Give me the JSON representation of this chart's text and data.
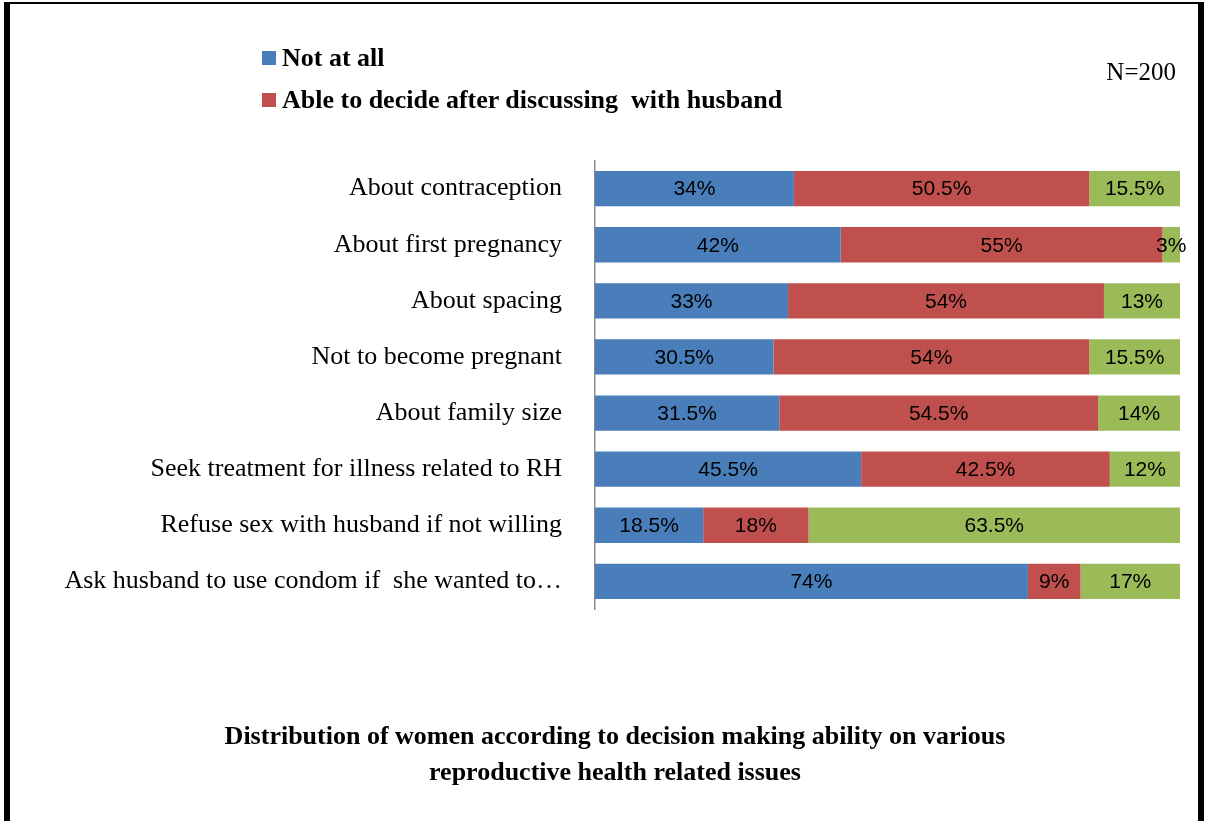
{
  "chart_data": {
    "type": "bar",
    "orientation": "horizontal",
    "stacked": true,
    "title": "Distribution of women according to decision making ability on various reproductive health related issues",
    "annotations": [
      "N=200"
    ],
    "categories": [
      "About contraception",
      "About first pregnancy",
      "About spacing",
      "Not to become pregnant",
      "About family size",
      "Seek treatment for illness related to RH",
      "Refuse sex with husband if not willing",
      "Ask husband to use condom if  she wanted to…"
    ],
    "series": [
      {
        "name": "Not at all",
        "color": "#4a7ebb",
        "values": [
          34,
          42,
          33,
          30.5,
          31.5,
          45.5,
          18.5,
          74
        ],
        "value_labels": [
          "34%",
          "42%",
          "33%",
          "30.5%",
          "31.5%",
          "45.5%",
          "18.5%",
          "74%"
        ]
      },
      {
        "name": "Able to decide after discussing  with husband",
        "color": "#c0504d",
        "values": [
          50.5,
          55,
          54,
          54,
          54.5,
          42.5,
          18,
          9
        ],
        "value_labels": [
          "50.5%",
          "55%",
          "54%",
          "54%",
          "54.5%",
          "42.5%",
          "18%",
          "9%"
        ]
      },
      {
        "color": "#9bbb59",
        "values": [
          15.5,
          3,
          13,
          15.5,
          14,
          12,
          63.5,
          17
        ],
        "value_labels": [
          "15.5%",
          "3%",
          "13%",
          "15.5%",
          "14%",
          "12%",
          "63.5%",
          "17%"
        ]
      }
    ],
    "xlim": [
      0,
      100
    ],
    "tick_labels": "y",
    "legend": "top"
  }
}
